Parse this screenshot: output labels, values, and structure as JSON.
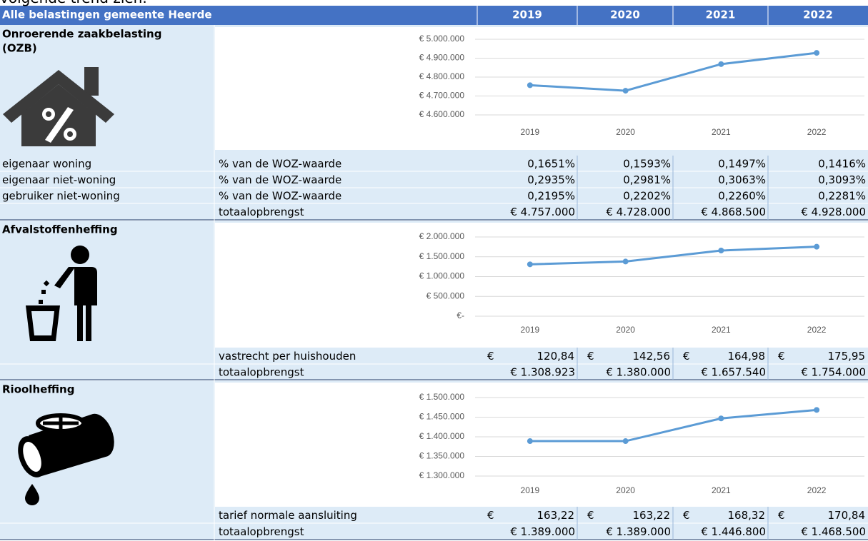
{
  "intro": "volgende trend zien.",
  "header": {
    "title": "Alle belastingen gemeente Heerde",
    "years": [
      "2019",
      "2020",
      "2021",
      "2022"
    ]
  },
  "sections": [
    {
      "title": [
        "Onroerende zaakbelasting",
        "(OZB)"
      ],
      "rows": [
        [
          "eigenaar woning",
          "% van de WOZ-waarde",
          "0,1651%",
          "0,1593%",
          "0,1497%",
          "0,1416%"
        ],
        [
          "eigenaar niet-woning",
          "% van de WOZ-waarde",
          "0,2935%",
          "0,2981%",
          "0,3063%",
          "0,3093%"
        ],
        [
          "gebruiker niet-woning",
          "% van de WOZ-waarde",
          "0,2195%",
          "0,2202%",
          "0,2260%",
          "0,2281%"
        ],
        [
          "",
          "totaalopbrengst",
          "€ 4.757.000",
          "€ 4.728.000",
          "€ 4.868.500",
          "€ 4.928.000"
        ]
      ]
    },
    {
      "title": [
        "Afvalstoffenheffing"
      ],
      "rows": [
        [
          "",
          "vastrecht per huishouden",
          {
            "currency": "€",
            "amount": "120,84"
          },
          {
            "currency": "€",
            "amount": "142,56"
          },
          {
            "currency": "€",
            "amount": "164,98"
          },
          {
            "currency": "€",
            "amount": "175,95"
          }
        ],
        [
          "",
          "totaalopbrengst",
          "€ 1.308.923",
          "€ 1.380.000",
          "€ 1.657.540",
          "€ 1.754.000"
        ]
      ]
    },
    {
      "title": [
        "Rioolheffing"
      ],
      "rows": [
        [
          "",
          "tarief normale aansluiting",
          {
            "currency": "€",
            "amount": "163,22"
          },
          {
            "currency": "€",
            "amount": "163,22"
          },
          {
            "currency": "€",
            "amount": "168,32"
          },
          {
            "currency": "€",
            "amount": "170,84"
          }
        ],
        [
          "",
          "totaalopbrengst",
          "€ 1.389.000",
          "€ 1.389.000",
          "€ 1.446.800",
          "€ 1.468.500"
        ]
      ]
    }
  ],
  "chart_data": [
    {
      "type": "line",
      "categories": [
        "2019",
        "2020",
        "2021",
        "2022"
      ],
      "series": [
        {
          "color": "#5b9bd5",
          "values": [
            4757000,
            4728000,
            4868500,
            4928000
          ]
        }
      ],
      "ylim": [
        4600000,
        5000000
      ],
      "grid": true,
      "yticks": [
        {
          "value": 4600000,
          "label": "€ 4.600.000"
        },
        {
          "value": 4700000,
          "label": "€ 4.700.000"
        },
        {
          "value": 4800000,
          "label": "€ 4.800.000"
        },
        {
          "value": 4900000,
          "label": "€ 4.900.000"
        },
        {
          "value": 5000000,
          "label": "€ 5.000.000"
        }
      ]
    },
    {
      "type": "line",
      "categories": [
        "2019",
        "2020",
        "2021",
        "2022"
      ],
      "series": [
        {
          "color": "#5b9bd5",
          "values": [
            1308923,
            1380000,
            1657540,
            1754000
          ]
        }
      ],
      "ylim": [
        0,
        2000000
      ],
      "grid": true,
      "yticks": [
        {
          "value": 0,
          "label": "€-"
        },
        {
          "value": 500000,
          "label": "€ 500.000"
        },
        {
          "value": 1000000,
          "label": "€ 1.000.000"
        },
        {
          "value": 1500000,
          "label": "€ 1.500.000"
        },
        {
          "value": 2000000,
          "label": "€ 2.000.000"
        }
      ]
    },
    {
      "type": "line",
      "categories": [
        "2019",
        "2020",
        "2021",
        "2022"
      ],
      "series": [
        {
          "color": "#5b9bd5",
          "values": [
            1389000,
            1389000,
            1446800,
            1468500
          ]
        }
      ],
      "ylim": [
        1300000,
        1500000
      ],
      "grid": true,
      "yticks": [
        {
          "value": 1300000,
          "label": "€ 1.300.000"
        },
        {
          "value": 1350000,
          "label": "€ 1.350.000"
        },
        {
          "value": 1400000,
          "label": "€ 1.400.000"
        },
        {
          "value": 1450000,
          "label": "€ 1.450.000"
        },
        {
          "value": 1500000,
          "label": "€ 1.500.000"
        }
      ]
    }
  ]
}
